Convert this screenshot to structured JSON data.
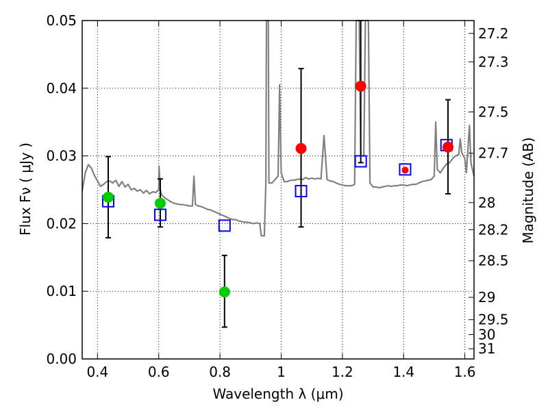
{
  "chart_data": {
    "type": "scatter",
    "xlabel": "Wavelength  λ (μm)",
    "ylabel": "Flux  Fν  ( μJy )",
    "y2label": "Magnitude (AB)",
    "xlim": [
      0.35,
      1.63
    ],
    "ylim": [
      0.0,
      0.05
    ],
    "grid": true,
    "x_ticks": [
      0.4,
      0.6,
      0.8,
      1.0,
      1.2,
      1.4,
      1.6
    ],
    "x_tick_labels": [
      "0.4",
      "0.6",
      "0.8",
      "1",
      "1.2",
      "1.4",
      "1.6"
    ],
    "y_ticks": [
      0.0,
      0.01,
      0.02,
      0.03,
      0.04,
      0.05
    ],
    "y_tick_labels": [
      "0.00",
      "0.01",
      "0.02",
      "0.03",
      "0.04",
      "0.05"
    ],
    "y2_ticks": [
      {
        "label": "27.2",
        "flux": 0.0481
      },
      {
        "label": "27.3",
        "flux": 0.0439
      },
      {
        "label": "27.5",
        "flux": 0.0365
      },
      {
        "label": "27.7",
        "flux": 0.0304
      },
      {
        "label": "28",
        "flux": 0.0231
      },
      {
        "label": "28.2",
        "flux": 0.0191
      },
      {
        "label": "28.5",
        "flux": 0.0145
      },
      {
        "label": "29",
        "flux": 0.0091
      },
      {
        "label": "29.5",
        "flux": 0.0058
      },
      {
        "label": "30",
        "flux": 0.0036
      },
      {
        "label": "31",
        "flux": 0.0015
      }
    ],
    "series": [
      {
        "kind": "spectrum",
        "color": "#808080",
        "points": [
          [
            0.35,
            0.0248
          ],
          [
            0.36,
            0.0275
          ],
          [
            0.37,
            0.0287
          ],
          [
            0.38,
            0.0282
          ],
          [
            0.39,
            0.0271
          ],
          [
            0.4,
            0.0263
          ],
          [
            0.41,
            0.0255
          ],
          [
            0.42,
            0.0258
          ],
          [
            0.43,
            0.0262
          ],
          [
            0.44,
            0.0263
          ],
          [
            0.45,
            0.026
          ],
          [
            0.46,
            0.0264
          ],
          [
            0.47,
            0.0255
          ],
          [
            0.48,
            0.0262
          ],
          [
            0.49,
            0.0254
          ],
          [
            0.5,
            0.0258
          ],
          [
            0.51,
            0.025
          ],
          [
            0.52,
            0.0252
          ],
          [
            0.53,
            0.0248
          ],
          [
            0.54,
            0.025
          ],
          [
            0.55,
            0.0245
          ],
          [
            0.56,
            0.0249
          ],
          [
            0.57,
            0.0244
          ],
          [
            0.58,
            0.0247
          ],
          [
            0.59,
            0.0246
          ],
          [
            0.6,
            0.025
          ],
          [
            0.601,
            0.0285
          ],
          [
            0.605,
            0.025
          ],
          [
            0.61,
            0.0242
          ],
          [
            0.62,
            0.0238
          ],
          [
            0.63,
            0.0235
          ],
          [
            0.64,
            0.0232
          ],
          [
            0.65,
            0.023
          ],
          [
            0.66,
            0.0229
          ],
          [
            0.67,
            0.0228
          ],
          [
            0.68,
            0.0228
          ],
          [
            0.69,
            0.0227
          ],
          [
            0.7,
            0.0226
          ],
          [
            0.71,
            0.0226
          ],
          [
            0.715,
            0.027
          ],
          [
            0.72,
            0.0228
          ],
          [
            0.73,
            0.0226
          ],
          [
            0.74,
            0.0225
          ],
          [
            0.75,
            0.0223
          ],
          [
            0.76,
            0.0221
          ],
          [
            0.77,
            0.022
          ],
          [
            0.78,
            0.0218
          ],
          [
            0.79,
            0.0216
          ],
          [
            0.8,
            0.0214
          ],
          [
            0.81,
            0.0212
          ],
          [
            0.82,
            0.021
          ],
          [
            0.83,
            0.0208
          ],
          [
            0.84,
            0.0206
          ],
          [
            0.85,
            0.0206
          ],
          [
            0.86,
            0.0204
          ],
          [
            0.87,
            0.0203
          ],
          [
            0.88,
            0.0202
          ],
          [
            0.89,
            0.0202
          ],
          [
            0.9,
            0.0201
          ],
          [
            0.91,
            0.02
          ],
          [
            0.92,
            0.0201
          ],
          [
            0.93,
            0.02
          ],
          [
            0.935,
            0.0182
          ],
          [
            0.945,
            0.0182
          ],
          [
            0.95,
            0.026
          ],
          [
            0.952,
            0.05
          ],
          [
            0.958,
            0.05
          ],
          [
            0.96,
            0.026
          ],
          [
            0.97,
            0.026
          ],
          [
            0.98,
            0.0265
          ],
          [
            0.99,
            0.027
          ],
          [
            0.995,
            0.0405
          ],
          [
            1.0,
            0.0275
          ],
          [
            1.01,
            0.0262
          ],
          [
            1.02,
            0.0262
          ],
          [
            1.03,
            0.0264
          ],
          [
            1.04,
            0.0264
          ],
          [
            1.05,
            0.0265
          ],
          [
            1.06,
            0.0266
          ],
          [
            1.07,
            0.0265
          ],
          [
            1.08,
            0.0268
          ],
          [
            1.09,
            0.0266
          ],
          [
            1.1,
            0.0267
          ],
          [
            1.11,
            0.0266
          ],
          [
            1.12,
            0.0267
          ],
          [
            1.13,
            0.0266
          ],
          [
            1.14,
            0.033
          ],
          [
            1.15,
            0.0265
          ],
          [
            1.16,
            0.0263
          ],
          [
            1.17,
            0.0262
          ],
          [
            1.18,
            0.026
          ],
          [
            1.19,
            0.0258
          ],
          [
            1.2,
            0.0257
          ],
          [
            1.21,
            0.0256
          ],
          [
            1.22,
            0.0256
          ],
          [
            1.23,
            0.0256
          ],
          [
            1.24,
            0.0258
          ],
          [
            1.245,
            0.05
          ],
          [
            1.255,
            0.05
          ],
          [
            1.26,
            0.03
          ],
          [
            1.27,
            0.03
          ],
          [
            1.275,
            0.05
          ],
          [
            1.285,
            0.05
          ],
          [
            1.29,
            0.026
          ],
          [
            1.3,
            0.0254
          ],
          [
            1.31,
            0.0254
          ],
          [
            1.32,
            0.0253
          ],
          [
            1.33,
            0.0254
          ],
          [
            1.34,
            0.0255
          ],
          [
            1.35,
            0.0256
          ],
          [
            1.36,
            0.0255
          ],
          [
            1.37,
            0.0256
          ],
          [
            1.38,
            0.0256
          ],
          [
            1.39,
            0.0257
          ],
          [
            1.4,
            0.0257
          ],
          [
            1.41,
            0.0256
          ],
          [
            1.42,
            0.0257
          ],
          [
            1.43,
            0.0258
          ],
          [
            1.44,
            0.0258
          ],
          [
            1.45,
            0.026
          ],
          [
            1.46,
            0.0262
          ],
          [
            1.47,
            0.0263
          ],
          [
            1.48,
            0.0264
          ],
          [
            1.49,
            0.0265
          ],
          [
            1.5,
            0.027
          ],
          [
            1.505,
            0.035
          ],
          [
            1.51,
            0.028
          ],
          [
            1.52,
            0.0275
          ],
          [
            1.53,
            0.0282
          ],
          [
            1.54,
            0.0288
          ],
          [
            1.55,
            0.029
          ],
          [
            1.56,
            0.0296
          ],
          [
            1.57,
            0.03
          ],
          [
            1.58,
            0.0302
          ],
          [
            1.585,
            0.0325
          ],
          [
            1.59,
            0.0305
          ],
          [
            1.6,
            0.0296
          ],
          [
            1.605,
            0.0275
          ],
          [
            1.61,
            0.031
          ],
          [
            1.615,
            0.0345
          ],
          [
            1.62,
            0.029
          ],
          [
            1.63,
            0.027
          ]
        ]
      },
      {
        "kind": "model-squares",
        "color": "#0000ff",
        "points": [
          [
            0.435,
            0.0233
          ],
          [
            0.605,
            0.0213
          ],
          [
            0.815,
            0.0197
          ],
          [
            1.065,
            0.0248
          ],
          [
            1.26,
            0.0292
          ],
          [
            1.405,
            0.028
          ],
          [
            1.54,
            0.0316
          ]
        ]
      },
      {
        "kind": "detections",
        "color": "#00cc00",
        "points": [
          {
            "x": 0.435,
            "y": 0.0239,
            "lo": 0.0179,
            "hi": 0.0299
          },
          {
            "x": 0.605,
            "y": 0.023,
            "lo": 0.0195,
            "hi": 0.0266
          },
          {
            "x": 0.815,
            "y": 0.0099,
            "lo": 0.0047,
            "hi": 0.0153
          }
        ]
      },
      {
        "kind": "detections",
        "color": "#ff0000",
        "points": [
          {
            "x": 1.065,
            "y": 0.0311,
            "lo": 0.0195,
            "hi": 0.0429
          },
          {
            "x": 1.26,
            "y": 0.0403,
            "lo": 0.029,
            "hi": 0.05
          },
          {
            "x": 1.405,
            "y": 0.0279,
            "lo": 0.0279,
            "hi": 0.0279
          },
          {
            "x": 1.545,
            "y": 0.0313,
            "lo": 0.0244,
            "hi": 0.0383
          }
        ]
      }
    ]
  }
}
